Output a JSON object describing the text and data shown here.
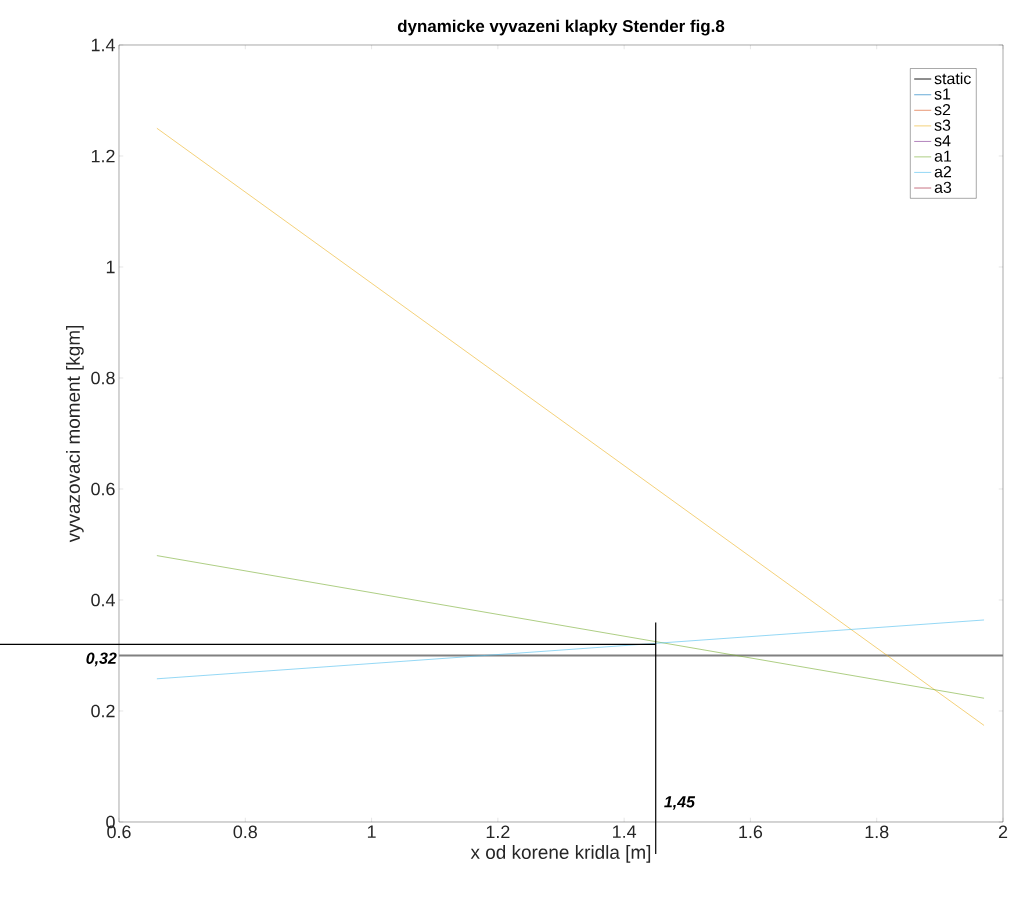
{
  "chart_data": {
    "type": "line",
    "title": "dynamicke vyvazeni klapky Stender fig.8",
    "xlabel": "x od korene kridla [m]",
    "ylabel": "vyvazovaci moment [kgm]",
    "xlim": [
      0.6,
      2
    ],
    "ylim": [
      0,
      1.4
    ],
    "xticks": [
      0.6,
      0.8,
      1,
      1.2,
      1.4,
      1.6,
      1.8,
      2
    ],
    "yticks": [
      0,
      0.2,
      0.4,
      0.6,
      0.8,
      1,
      1.2,
      1.4
    ],
    "grid": false,
    "legend": "top right",
    "marker": "none",
    "line_style": "solid",
    "series": [
      {
        "name": "static",
        "color": "#808080",
        "x": [
          0.6,
          2
        ],
        "values": [
          0.3,
          0.3
        ]
      },
      {
        "name": "s1",
        "color": "#0072bd"
      },
      {
        "name": "s2",
        "color": "#d95319"
      },
      {
        "name": "s3",
        "color": "#edb120",
        "x": [
          0.66,
          1.97
        ],
        "values": [
          1.25,
          0.174
        ]
      },
      {
        "name": "s4",
        "color": "#7e2f8e"
      },
      {
        "name": "a1",
        "color": "#77ac30",
        "x": [
          0.66,
          1.97
        ],
        "values": [
          0.48,
          0.223
        ]
      },
      {
        "name": "a2",
        "color": "#4dbeee",
        "x": [
          0.66,
          1.97
        ],
        "values": [
          0.258,
          0.364
        ]
      },
      {
        "name": "a3",
        "color": "#a2142f"
      }
    ],
    "ref_lines": [
      {
        "axis": "y",
        "value": 0.32,
        "label": "0,32",
        "color": "#000000",
        "line_style": "solid"
      },
      {
        "axis": "x",
        "value": 1.45,
        "label": "1,45",
        "color": "#000000",
        "line_style": "solid"
      }
    ]
  }
}
